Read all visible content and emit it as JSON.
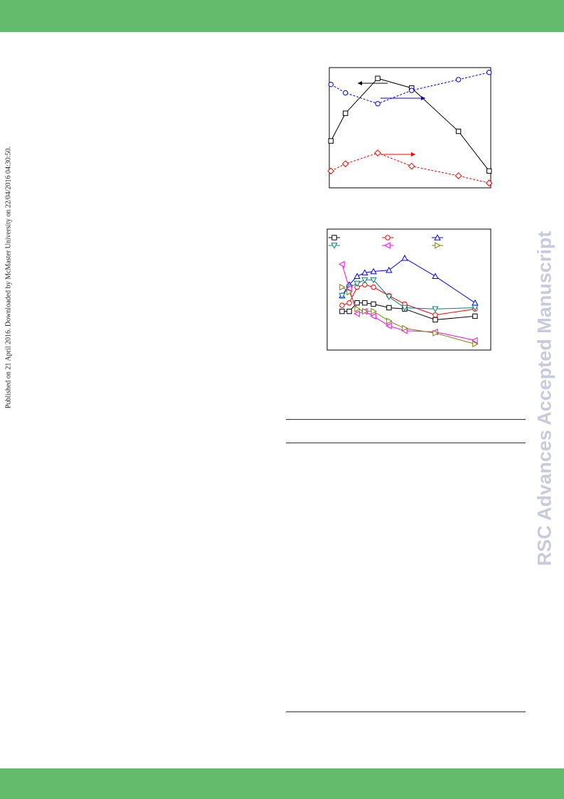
{
  "sidebar": "Published on 21 April 2016. Downloaded by McMaster University on 22/04/2016 04:30:50.",
  "watermark": "RSC Advances Accepted Manuscript",
  "chart_data": [
    {
      "type": "line",
      "xlim": [
        0,
        10
      ],
      "ylim": [
        0,
        10
      ],
      "x": [
        0.1,
        1.0,
        3.0,
        5.1,
        8.0,
        9.9
      ],
      "series": [
        {
          "color": "#000000",
          "marker": "square",
          "dashed": false,
          "values": [
            3.9,
            6.2,
            9.1,
            8.3,
            4.7,
            1.4
          ]
        },
        {
          "color": "#0000ff",
          "marker": "circle",
          "dashed": true,
          "values": [
            8.6,
            7.9,
            7.0,
            8.1,
            9.0,
            9.6
          ]
        },
        {
          "color": "#ff0000",
          "marker": "diamond",
          "dashed": true,
          "values": [
            1.4,
            2.0,
            2.9,
            1.8,
            1.0,
            0.4
          ]
        }
      ]
    },
    {
      "type": "line",
      "xlim": [
        0,
        10
      ],
      "ylim": [
        0,
        10
      ],
      "x": [
        0.91,
        1.35,
        1.83,
        2.3,
        2.83,
        3.78,
        4.74,
        6.61,
        9.04
      ],
      "series": [
        {
          "color": "#000000",
          "marker": "square",
          "dashed": false,
          "values": [
            3.2,
            3.2,
            3.9,
            3.9,
            3.8,
            3.5,
            3.4,
            2.5,
            2.8
          ]
        },
        {
          "color": "#ff0000",
          "marker": "circle",
          "dashed": false,
          "values": [
            3.7,
            3.9,
            5.2,
            5.4,
            5.2,
            4.5,
            3.8,
            2.9,
            3.4
          ]
        },
        {
          "color": "#0000ff",
          "marker": "triangle-up",
          "dashed": false,
          "values": [
            4.5,
            5.4,
            6.1,
            6.4,
            6.5,
            6.6,
            7.6,
            6.1,
            3.9
          ]
        },
        {
          "color": "#008080",
          "marker": "triangle-down",
          "dashed": false,
          "values": [
            4.5,
            5.2,
            5.5,
            5.8,
            5.8,
            4.4,
            3.5,
            3.4,
            3.5
          ]
        },
        {
          "color": "#ff00ff",
          "marker": "triangle-left",
          "dashed": false,
          "values": [
            7.1,
            5.1,
            3.0,
            3.2,
            2.8,
            2.0,
            1.6,
            1.5,
            0.8
          ]
        },
        {
          "color": "#808000",
          "marker": "triangle-right",
          "dashed": false,
          "values": [
            5.2,
            4.8,
            3.4,
            3.2,
            3.2,
            2.4,
            1.8,
            1.4,
            0.5
          ]
        }
      ]
    }
  ]
}
